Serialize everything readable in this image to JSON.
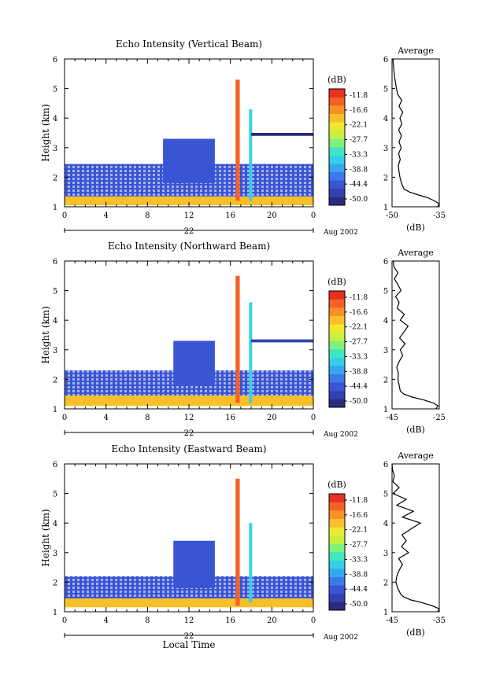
{
  "figure": {
    "xlabel": "Local Time",
    "date_label": "Aug 2002",
    "day_label": "22",
    "colorbar_unit": "(dB)",
    "colorbar_ticks": [
      "-11.8",
      "-16.6",
      "-22.1",
      "-27.7",
      "-33.3",
      "-38.8",
      "-44.4",
      "-50.0"
    ],
    "colormap": [
      "#2a2a7e",
      "#3340b0",
      "#3a55d4",
      "#3a7ae8",
      "#37a6f0",
      "#35d0e8",
      "#40e6c0",
      "#80f07c",
      "#c8f040",
      "#f0e830",
      "#f8c028",
      "#f89028",
      "#f46028",
      "#e83020"
    ],
    "average_title": "Average",
    "average_xlabel": "(dB)"
  },
  "chart_data": [
    {
      "type": "heatmap",
      "title": "Echo Intensity (Vertical Beam)",
      "ylabel": "Height (km)",
      "x_ticks": [
        "0",
        "4",
        "8",
        "12",
        "16",
        "20",
        "0"
      ],
      "xlim": [
        0,
        24
      ],
      "ylim": [
        1,
        6
      ],
      "y_ticks": [
        "1",
        "2",
        "3",
        "4",
        "5",
        "6"
      ],
      "clim": [
        -50.0,
        -11.0
      ],
      "regions": [
        {
          "name": "surface_layer",
          "t": [
            0,
            24
          ],
          "h": [
            1.05,
            1.35
          ],
          "db": -20
        },
        {
          "name": "boundary_layer",
          "t": [
            0,
            24
          ],
          "h": [
            1.35,
            2.45
          ],
          "db": -44
        },
        {
          "name": "convection_a",
          "t": [
            9.5,
            14.5
          ],
          "h": [
            1.8,
            3.3
          ],
          "db": -42
        },
        {
          "name": "convective_core",
          "t": [
            16.5,
            16.9
          ],
          "h": [
            1.2,
            5.3
          ],
          "db": -14
        },
        {
          "name": "secondary_core",
          "t": [
            17.8,
            18.1
          ],
          "h": [
            1.2,
            4.3
          ],
          "db": -36
        },
        {
          "name": "upper_layer",
          "t": [
            18,
            24
          ],
          "h": [
            3.4,
            3.5
          ],
          "db": -48
        }
      ],
      "average": {
        "xlim": [
          -50,
          -35
        ],
        "x_ticks": [
          "-50",
          "-35"
        ],
        "y_ticks": [
          "1",
          "2",
          "3",
          "4",
          "5",
          "6"
        ],
        "height": [
          1.0,
          1.1,
          1.2,
          1.3,
          1.4,
          1.5,
          1.6,
          1.8,
          2.0,
          2.2,
          2.4,
          2.6,
          2.8,
          3.0,
          3.2,
          3.4,
          3.6,
          3.8,
          4.0,
          4.2,
          4.4,
          4.6,
          4.8,
          5.0,
          5.2,
          5.4,
          5.6,
          5.8,
          6.0
        ],
        "db": [
          -35.5,
          -34.8,
          -36.5,
          -38.5,
          -41.5,
          -44.5,
          -46.2,
          -47.0,
          -47.5,
          -47.8,
          -48.0,
          -47.4,
          -47.9,
          -47.1,
          -47.8,
          -47.0,
          -47.9,
          -46.9,
          -47.5,
          -46.6,
          -47.8,
          -46.9,
          -48.2,
          -48.6,
          -48.9,
          -49.2,
          -49.4,
          -49.6,
          -49.7
        ]
      }
    },
    {
      "type": "heatmap",
      "title": "Echo Intensity (Northward Beam)",
      "ylabel": "Height (km)",
      "x_ticks": [
        "0",
        "4",
        "8",
        "12",
        "16",
        "20",
        "0"
      ],
      "xlim": [
        0,
        24
      ],
      "ylim": [
        1,
        6
      ],
      "y_ticks": [
        "1",
        "2",
        "3",
        "4",
        "5",
        "6"
      ],
      "clim": [
        -50.0,
        -11.0
      ],
      "regions": [
        {
          "name": "surface_layer",
          "t": [
            0,
            24
          ],
          "h": [
            1.1,
            1.45
          ],
          "db": -20
        },
        {
          "name": "boundary_layer",
          "t": [
            0,
            24
          ],
          "h": [
            1.45,
            2.3
          ],
          "db": -44
        },
        {
          "name": "convection_a",
          "t": [
            10.5,
            14.5
          ],
          "h": [
            1.8,
            3.3
          ],
          "db": -42
        },
        {
          "name": "convective_core",
          "t": [
            16.5,
            16.9
          ],
          "h": [
            1.2,
            5.5
          ],
          "db": -14
        },
        {
          "name": "secondary_core",
          "t": [
            17.8,
            18.1
          ],
          "h": [
            1.2,
            4.6
          ],
          "db": -36
        },
        {
          "name": "upper_layer",
          "t": [
            18,
            24
          ],
          "h": [
            3.25,
            3.35
          ],
          "db": -46
        }
      ],
      "average": {
        "xlim": [
          -45,
          -25
        ],
        "x_ticks": [
          "-45",
          "-25"
        ],
        "y_ticks": [
          "1",
          "2",
          "3",
          "4",
          "5",
          "6"
        ],
        "height": [
          1.0,
          1.1,
          1.2,
          1.3,
          1.4,
          1.5,
          1.6,
          1.8,
          2.0,
          2.2,
          2.4,
          2.6,
          2.8,
          3.0,
          3.2,
          3.4,
          3.6,
          3.8,
          4.0,
          4.2,
          4.4,
          4.6,
          4.8,
          5.0,
          5.2,
          5.4,
          5.6,
          5.8,
          6.0
        ],
        "db": [
          -26.5,
          -25.5,
          -27.5,
          -31.5,
          -36.5,
          -40.0,
          -41.5,
          -42.0,
          -42.5,
          -42.3,
          -43.0,
          -42.0,
          -40.5,
          -41.5,
          -39.5,
          -41.8,
          -40.0,
          -38.2,
          -41.5,
          -39.8,
          -42.8,
          -42.0,
          -43.5,
          -41.2,
          -42.5,
          -44.0,
          -42.5,
          -44.2,
          -44.5
        ]
      }
    },
    {
      "type": "heatmap",
      "title": "Echo Intensity (Eastward Beam)",
      "ylabel": "Height (km)",
      "x_ticks": [
        "0",
        "4",
        "8",
        "12",
        "16",
        "20",
        "0"
      ],
      "xlim": [
        0,
        24
      ],
      "ylim": [
        1,
        6
      ],
      "y_ticks": [
        "1",
        "2",
        "3",
        "4",
        "5",
        "6"
      ],
      "clim": [
        -50.0,
        -11.0
      ],
      "regions": [
        {
          "name": "surface_layer",
          "t": [
            0,
            24
          ],
          "h": [
            1.15,
            1.45
          ],
          "db": -20
        },
        {
          "name": "boundary_layer",
          "t": [
            0,
            24
          ],
          "h": [
            1.45,
            2.2
          ],
          "db": -44
        },
        {
          "name": "convection_a",
          "t": [
            10.5,
            14.5
          ],
          "h": [
            1.8,
            3.4
          ],
          "db": -42
        },
        {
          "name": "convective_core",
          "t": [
            16.5,
            16.9
          ],
          "h": [
            1.2,
            5.5
          ],
          "db": -14
        },
        {
          "name": "secondary_core",
          "t": [
            17.8,
            18.1
          ],
          "h": [
            1.3,
            4.0
          ],
          "db": -36
        }
      ],
      "average": {
        "xlim": [
          -45,
          -35
        ],
        "x_ticks": [
          "-45",
          "-35"
        ],
        "y_ticks": [
          "1",
          "2",
          "3",
          "4",
          "5",
          "6"
        ],
        "height": [
          1.0,
          1.1,
          1.2,
          1.3,
          1.4,
          1.5,
          1.6,
          1.8,
          2.0,
          2.2,
          2.4,
          2.6,
          2.8,
          3.0,
          3.2,
          3.4,
          3.6,
          3.8,
          4.0,
          4.2,
          4.4,
          4.6,
          4.8,
          5.0,
          5.2,
          5.4,
          5.6,
          5.8,
          6.0
        ],
        "db": [
          -35.3,
          -35.0,
          -36.5,
          -38.5,
          -41.0,
          -42.5,
          -43.2,
          -43.8,
          -44.2,
          -44.0,
          -43.5,
          -42.8,
          -43.6,
          -41.5,
          -43.0,
          -42.0,
          -42.9,
          -41.0,
          -39.0,
          -42.8,
          -40.5,
          -44.0,
          -42.0,
          -44.8,
          -43.5,
          -44.8,
          -44.5,
          -44.9,
          -45.0
        ]
      }
    }
  ]
}
